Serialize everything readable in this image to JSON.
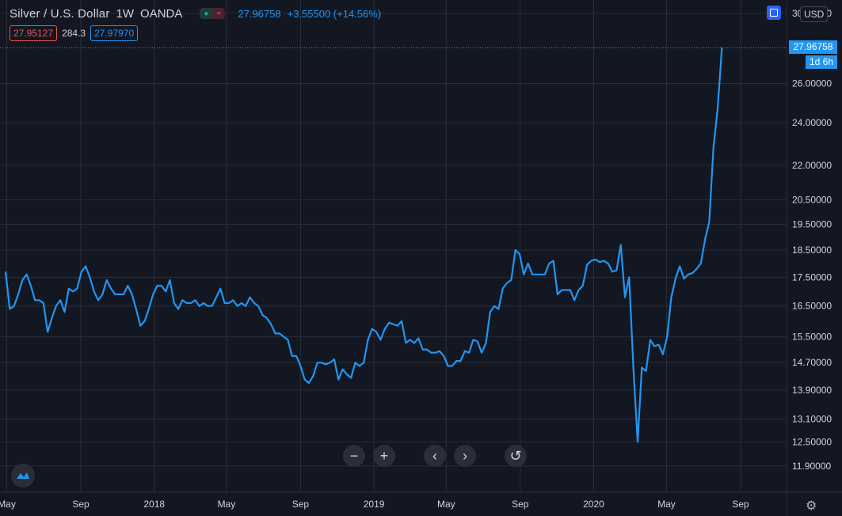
{
  "header": {
    "symbol": "Silver / U.S. Dollar",
    "interval": "1W",
    "exchange": "OANDA",
    "price": "27.96758",
    "change": "+3.55500 (+14.56%)"
  },
  "indicators": {
    "bid": "27.95127",
    "spread": "284.3",
    "ask": "27.97970"
  },
  "currency_label": "USD",
  "price_tag": {
    "price": "27.96758",
    "countdown": "1d 6h"
  },
  "icons": {
    "status": "circle-dot-icon",
    "replay": "approx-icon",
    "zoom_out": "minus-icon",
    "zoom_in": "plus-icon",
    "scroll_left": "chevron-left-icon",
    "scroll_right": "chevron-right-icon",
    "reset": "rotate-ccw-icon",
    "settings": "gear-icon",
    "logo": "tradingview-logo-icon",
    "fullscreen": "square-icon"
  },
  "colors": {
    "line": "#2196f3",
    "background": "#131722",
    "grid": "#2a2e39",
    "text": "#d1d4dc",
    "bid": "#ef5350"
  },
  "chart_data": {
    "type": "line",
    "title": "Silver / U.S. Dollar",
    "xlabel": "",
    "ylabel": "",
    "scale": "log",
    "grid": true,
    "ylim": [
      11.5,
      30.0
    ],
    "y_ticks": [
      "30.00000",
      "26.00000",
      "24.00000",
      "22.00000",
      "20.50000",
      "19.50000",
      "18.50000",
      "17.50000",
      "16.50000",
      "15.50000",
      "14.70000",
      "13.90000",
      "13.10000",
      "12.50000",
      "11.90000"
    ],
    "y_tick_values": [
      30.0,
      26.0,
      24.0,
      22.0,
      20.5,
      19.5,
      18.5,
      17.5,
      16.5,
      15.5,
      14.7,
      13.9,
      13.1,
      12.5,
      11.9
    ],
    "x_ticks": [
      "May",
      "Sep",
      "2018",
      "May",
      "Sep",
      "2019",
      "May",
      "Sep",
      "2020",
      "May",
      "Sep"
    ],
    "x_tick_dates": [
      "2017-05-01",
      "2017-09-01",
      "2018-01-01",
      "2018-05-01",
      "2018-09-01",
      "2019-01-01",
      "2019-05-01",
      "2019-09-01",
      "2020-01-01",
      "2020-05-01",
      "2020-09-01"
    ],
    "x_range": [
      "2017-04-29",
      "2020-10-04"
    ],
    "series": [
      {
        "x": [
          "2017-04-29",
          "2017-05-06",
          "2017-05-13",
          "2017-05-20",
          "2017-05-27",
          "2017-06-03",
          "2017-06-10",
          "2017-06-17",
          "2017-06-24",
          "2017-07-01",
          "2017-07-08",
          "2017-07-15",
          "2017-07-22",
          "2017-07-29",
          "2017-08-05",
          "2017-08-12",
          "2017-08-19",
          "2017-08-26",
          "2017-09-02",
          "2017-09-09",
          "2017-09-16",
          "2017-09-23",
          "2017-09-30",
          "2017-10-07",
          "2017-10-14",
          "2017-10-21",
          "2017-10-28",
          "2017-11-04",
          "2017-11-11",
          "2017-11-18",
          "2017-11-25",
          "2017-12-02",
          "2017-12-09",
          "2017-12-16",
          "2017-12-23",
          "2017-12-30",
          "2018-01-06",
          "2018-01-13",
          "2018-01-20",
          "2018-01-27",
          "2018-02-03",
          "2018-02-10",
          "2018-02-17",
          "2018-02-24",
          "2018-03-03",
          "2018-03-10",
          "2018-03-17",
          "2018-03-24",
          "2018-03-31",
          "2018-04-07",
          "2018-04-14",
          "2018-04-21",
          "2018-04-28",
          "2018-05-05",
          "2018-05-12",
          "2018-05-19",
          "2018-05-26",
          "2018-06-02",
          "2018-06-09",
          "2018-06-16",
          "2018-06-23",
          "2018-06-30",
          "2018-07-07",
          "2018-07-14",
          "2018-07-21",
          "2018-07-28",
          "2018-08-04",
          "2018-08-11",
          "2018-08-18",
          "2018-08-25",
          "2018-09-01",
          "2018-09-08",
          "2018-09-15",
          "2018-09-22",
          "2018-09-29",
          "2018-10-06",
          "2018-10-13",
          "2018-10-20",
          "2018-10-27",
          "2018-11-03",
          "2018-11-10",
          "2018-11-17",
          "2018-11-24",
          "2018-12-01",
          "2018-12-08",
          "2018-12-15",
          "2018-12-22",
          "2018-12-29",
          "2019-01-05",
          "2019-01-12",
          "2019-01-19",
          "2019-01-26",
          "2019-02-02",
          "2019-02-09",
          "2019-02-16",
          "2019-02-23",
          "2019-03-02",
          "2019-03-09",
          "2019-03-16",
          "2019-03-23",
          "2019-03-30",
          "2019-04-06",
          "2019-04-13",
          "2019-04-20",
          "2019-04-27",
          "2019-05-04",
          "2019-05-11",
          "2019-05-18",
          "2019-05-25",
          "2019-06-01",
          "2019-06-08",
          "2019-06-15",
          "2019-06-22",
          "2019-06-29",
          "2019-07-06",
          "2019-07-13",
          "2019-07-20",
          "2019-07-27",
          "2019-08-03",
          "2019-08-10",
          "2019-08-17",
          "2019-08-24",
          "2019-08-31",
          "2019-09-07",
          "2019-09-14",
          "2019-09-21",
          "2019-09-28",
          "2019-10-05",
          "2019-10-12",
          "2019-10-19",
          "2019-10-26",
          "2019-11-02",
          "2019-11-09",
          "2019-11-16",
          "2019-11-23",
          "2019-11-30",
          "2019-12-07",
          "2019-12-14",
          "2019-12-21",
          "2019-12-28",
          "2020-01-04",
          "2020-01-11",
          "2020-01-18",
          "2020-01-25",
          "2020-02-01",
          "2020-02-08",
          "2020-02-15",
          "2020-02-22",
          "2020-02-29",
          "2020-03-07",
          "2020-03-14",
          "2020-03-21",
          "2020-03-28",
          "2020-04-04",
          "2020-04-11",
          "2020-04-18",
          "2020-04-25",
          "2020-05-02",
          "2020-05-09",
          "2020-05-16",
          "2020-05-23",
          "2020-05-30",
          "2020-06-06",
          "2020-06-13",
          "2020-06-20",
          "2020-06-27",
          "2020-07-04",
          "2020-07-11",
          "2020-07-18",
          "2020-07-25",
          "2020-08-01"
        ],
        "values": [
          17.7,
          16.4,
          16.5,
          16.9,
          17.4,
          17.6,
          17.2,
          16.7,
          16.7,
          16.6,
          15.65,
          16.1,
          16.5,
          16.7,
          16.3,
          17.1,
          17.0,
          17.1,
          17.7,
          17.9,
          17.5,
          17.0,
          16.7,
          16.9,
          17.4,
          17.1,
          16.9,
          16.9,
          16.9,
          17.2,
          16.9,
          16.4,
          15.85,
          16.0,
          16.4,
          16.9,
          17.2,
          17.2,
          17.0,
          17.4,
          16.6,
          16.4,
          16.7,
          16.6,
          16.6,
          16.7,
          16.5,
          16.6,
          16.5,
          16.5,
          16.8,
          17.1,
          16.6,
          16.6,
          16.7,
          16.5,
          16.6,
          16.5,
          16.8,
          16.6,
          16.5,
          16.2,
          16.1,
          15.9,
          15.6,
          15.6,
          15.5,
          15.4,
          14.9,
          14.9,
          14.6,
          14.2,
          14.1,
          14.3,
          14.7,
          14.7,
          14.65,
          14.7,
          14.8,
          14.2,
          14.5,
          14.35,
          14.25,
          14.7,
          14.6,
          14.7,
          15.4,
          15.75,
          15.65,
          15.4,
          15.75,
          15.95,
          15.9,
          15.85,
          16.0,
          15.3,
          15.4,
          15.3,
          15.45,
          15.1,
          15.1,
          15.0,
          15.0,
          15.05,
          14.9,
          14.6,
          14.6,
          14.75,
          14.75,
          15.05,
          15.0,
          15.4,
          15.35,
          15.0,
          15.3,
          16.3,
          16.5,
          16.4,
          17.1,
          17.3,
          17.4,
          18.5,
          18.35,
          17.6,
          18.0,
          17.6,
          17.6,
          17.6,
          17.6,
          18.0,
          18.1,
          16.9,
          17.05,
          17.05,
          17.05,
          16.7,
          17.05,
          17.2,
          17.95,
          18.1,
          18.15,
          18.05,
          18.1,
          18.0,
          17.7,
          17.75,
          18.7,
          16.8,
          17.5,
          14.55,
          12.5,
          14.55,
          14.45,
          15.4,
          15.2,
          15.25,
          14.95,
          15.5,
          16.8,
          17.45,
          17.9,
          17.45,
          17.6,
          17.65,
          17.8,
          18.0,
          18.9,
          19.6,
          22.8,
          24.7,
          27.97
        ]
      }
    ]
  }
}
